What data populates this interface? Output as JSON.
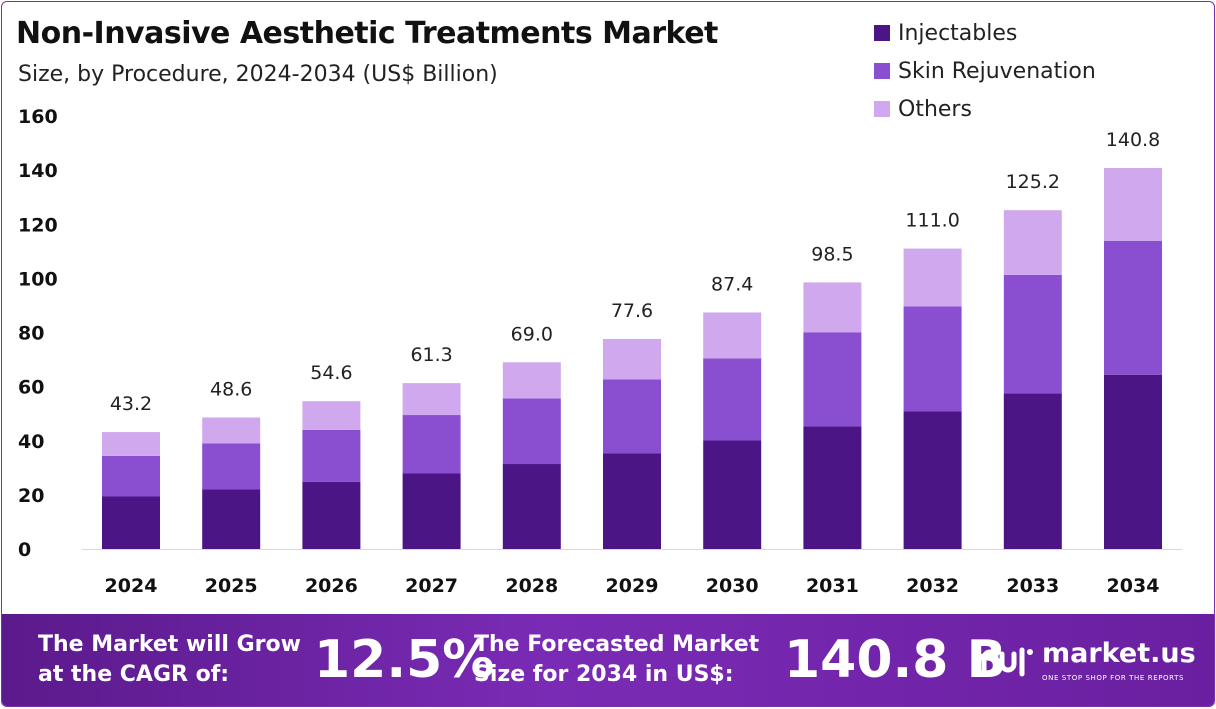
{
  "chart_data": {
    "type": "bar",
    "stacked": true,
    "title": "Non-Invasive Aesthetic Treatments Market",
    "subtitle": "Size, by Procedure, 2024-2034 (US$ Billion)",
    "categories": [
      "2024",
      "2025",
      "2026",
      "2027",
      "2028",
      "2029",
      "2030",
      "2031",
      "2032",
      "2033",
      "2034"
    ],
    "series": [
      {
        "name": "Injectables",
        "color": "#4b1585",
        "values": [
          19.4,
          22.0,
          24.8,
          27.9,
          31.4,
          35.3,
          40.1,
          45.3,
          50.8,
          57.5,
          64.4
        ]
      },
      {
        "name": "Skin Rejuvenation",
        "color": "#8a4fd0",
        "values": [
          15.0,
          17.0,
          19.2,
          21.6,
          24.2,
          27.4,
          30.3,
          34.7,
          38.8,
          43.8,
          49.5
        ]
      },
      {
        "name": "Others",
        "color": "#d0a8ee",
        "values": [
          8.8,
          9.6,
          10.6,
          11.8,
          13.4,
          14.9,
          17.0,
          18.5,
          21.4,
          23.9,
          26.9
        ]
      }
    ],
    "totals": [
      "43.2",
      "48.6",
      "54.6",
      "61.3",
      "69.0",
      "77.6",
      "87.4",
      "98.5",
      "111.0",
      "125.2",
      "140.8"
    ],
    "yticks": [
      0,
      20,
      40,
      60,
      80,
      100,
      120,
      140,
      160
    ],
    "ylim": [
      0,
      160
    ],
    "xlabel": "",
    "ylabel": "",
    "legend_position": "top-right",
    "grid": false
  },
  "footer": {
    "cagr_label_line1": "The Market will Grow",
    "cagr_label_line2": "at the CAGR of:",
    "cagr_value": "12.5%",
    "forecast_label_line1": "The Forecasted Market",
    "forecast_label_line2": "Size for 2034 in US$:",
    "forecast_value": "140.8 B",
    "brand_name": "market.us",
    "brand_tagline": "ONE STOP SHOP FOR THE REPORTS"
  }
}
